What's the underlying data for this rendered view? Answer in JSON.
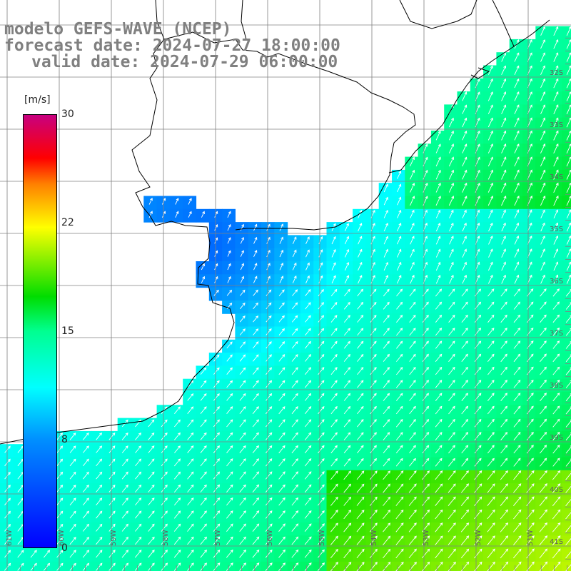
{
  "title": {
    "line1": "modelo GEFS-WAVE (NCEP)",
    "line2": "forecast date: 2024-07-27 18:00:00",
    "line3": "valid date: 2024-07-29 06:00:00"
  },
  "colorbar": {
    "unit": "[m/s]",
    "min": 0,
    "max": 30,
    "ticks": [
      "30",
      "22",
      "15",
      "8",
      "0"
    ]
  },
  "lon_labels": [
    "61W",
    "60W",
    "59W",
    "58W",
    "57W",
    "56W",
    "55W",
    "54W",
    "53W",
    "52W",
    "51W"
  ],
  "lat_labels": [
    "32S",
    "33S",
    "34S",
    "35S",
    "36S",
    "37S",
    "38S",
    "39S",
    "40S",
    "41S"
  ],
  "colors": {
    "land": "#ffffff",
    "grid": "#808080",
    "coast": "#000000",
    "arrow": "#ffffff"
  },
  "chart_data": {
    "type": "heatmap",
    "title": "modelo GEFS-WAVE (NCEP)",
    "units": "m/s",
    "value_range": [
      0,
      30
    ],
    "lon_range": [
      -61.5,
      -50.5
    ],
    "lat_range": [
      -41.5,
      -30.7
    ],
    "wind_direction_general": "southwest to northeast"
  }
}
